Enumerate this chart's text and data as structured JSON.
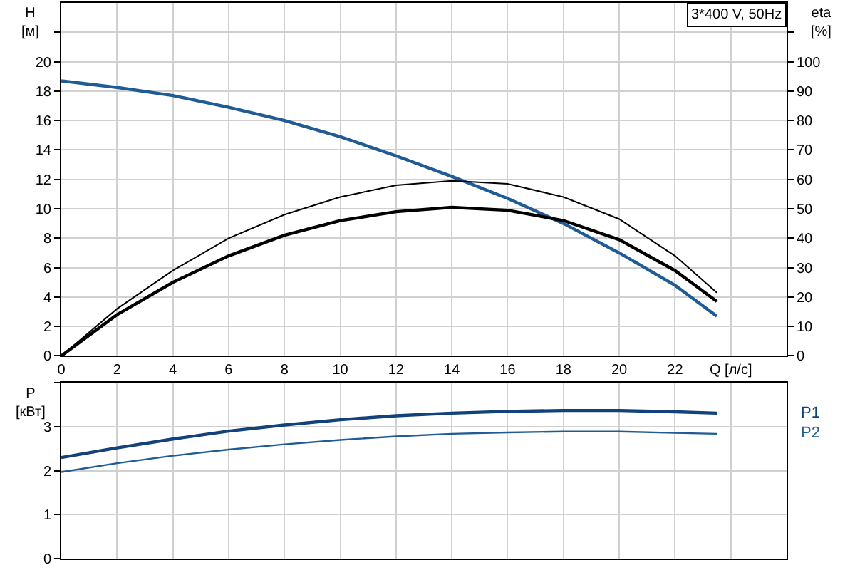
{
  "chart_data": [
    {
      "type": "line",
      "title": "3*400 V, 50Hz",
      "ylabel": "H\n[м]",
      "y2label": "eta\n[%]",
      "x": [
        0,
        2,
        4,
        6,
        8,
        10,
        12,
        14,
        16,
        18,
        20,
        22,
        23.5
      ],
      "series": [
        {
          "color": "#1f5b94",
          "values": [
            18.7,
            18.25,
            17.7,
            16.9,
            16.0,
            14.9,
            13.6,
            12.2,
            10.7,
            9.0,
            7.0,
            4.8,
            2.7
          ]
        },
        {
          "color": "#000000",
          "axis": "y2",
          "values": [
            0,
            16,
            29,
            40,
            48,
            54,
            58,
            59.5,
            58.5,
            54,
            46.5,
            34,
            21.5
          ]
        },
        {
          "color": "#000000",
          "axis": "y2",
          "values": [
            0,
            14,
            25,
            34,
            41,
            46,
            49,
            50.5,
            49.5,
            46,
            39.5,
            29,
            18.5
          ]
        }
      ],
      "xlim": [
        0,
        26
      ],
      "xticks": [
        0,
        2,
        4,
        6,
        8,
        10,
        12,
        14,
        16,
        18,
        20,
        22,
        {
          "value": 24,
          "label": "Q [л/с]"
        }
      ],
      "ylim": [
        0,
        24
      ],
      "yticks": [
        0,
        2,
        4,
        6,
        8,
        10,
        12,
        14,
        16,
        18,
        20,
        {
          "value": 22,
          "label": null
        }
      ],
      "y2lim": [
        0,
        120
      ],
      "y2ticks": [
        0,
        10,
        20,
        30,
        40,
        50,
        60,
        70,
        80,
        90,
        100,
        {
          "value": 110,
          "label": null
        }
      ],
      "grid": true,
      "legend": false,
      "marker": "none",
      "line_style": "solid"
    },
    {
      "type": "line",
      "ylabel": "P\n[кВт]",
      "x": [
        0,
        2,
        4,
        6,
        8,
        10,
        12,
        14,
        16,
        18,
        20,
        22,
        23.5
      ],
      "series": [
        {
          "name": "P1",
          "color": "#12427a",
          "values": [
            2.3,
            2.52,
            2.72,
            2.9,
            3.04,
            3.16,
            3.25,
            3.31,
            3.35,
            3.37,
            3.37,
            3.34,
            3.31
          ]
        },
        {
          "name": "P2",
          "color": "#1f5b94",
          "values": [
            1.97,
            2.17,
            2.34,
            2.48,
            2.6,
            2.7,
            2.78,
            2.84,
            2.87,
            2.89,
            2.89,
            2.86,
            2.84
          ]
        }
      ],
      "xlim": [
        0,
        26
      ],
      "xticks": [
        0,
        2,
        4,
        6,
        8,
        10,
        12,
        14,
        16,
        18,
        20,
        22,
        24
      ],
      "ylim": [
        0,
        4
      ],
      "yticks": [
        0,
        1,
        2,
        3,
        {
          "value": 4,
          "label": null
        }
      ],
      "tick_labels": "y",
      "grid": true,
      "legend": false,
      "marker": "none",
      "line_style": "solid"
    }
  ]
}
